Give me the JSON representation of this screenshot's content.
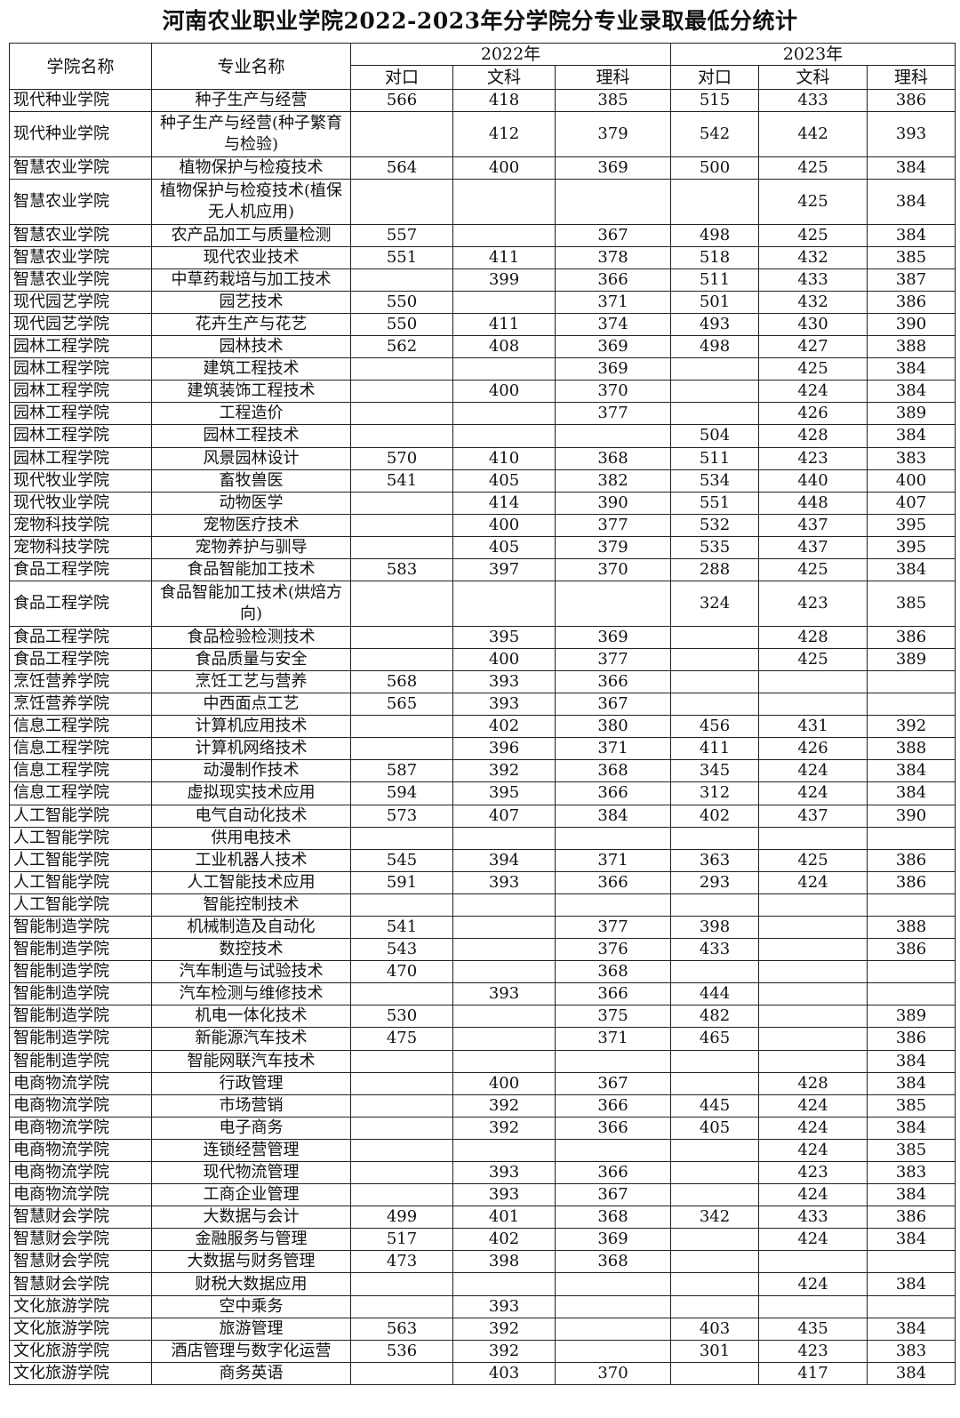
{
  "title": "河南农业职业学院2022-2023年分学院分专业录取最低分统计",
  "headers": {
    "college": "学院名称",
    "major": "专业名称",
    "years": [
      "2022年",
      "2023年"
    ],
    "subjects": [
      "对口",
      "文科",
      "理科",
      "对口",
      "文科",
      "理科"
    ]
  },
  "rows": [
    {
      "college": "现代种业学院",
      "major": "种子生产与经营",
      "v": [
        "566",
        "418",
        "385",
        "515",
        "433",
        "386"
      ]
    },
    {
      "college": "现代种业学院",
      "major": "种子生产与经营(种子繁育与检验)",
      "v": [
        "",
        "412",
        "379",
        "542",
        "442",
        "393"
      ]
    },
    {
      "college": "智慧农业学院",
      "major": "植物保护与检疫技术",
      "v": [
        "564",
        "400",
        "369",
        "500",
        "425",
        "384"
      ]
    },
    {
      "college": "智慧农业学院",
      "major": "植物保护与检疫技术(植保无人机应用)",
      "v": [
        "",
        "",
        "",
        "",
        "425",
        "384"
      ]
    },
    {
      "college": "智慧农业学院",
      "major": "农产品加工与质量检测",
      "v": [
        "557",
        "",
        "367",
        "498",
        "425",
        "384"
      ]
    },
    {
      "college": "智慧农业学院",
      "major": "现代农业技术",
      "v": [
        "551",
        "411",
        "378",
        "518",
        "432",
        "385"
      ]
    },
    {
      "college": "智慧农业学院",
      "major": "中草药栽培与加工技术",
      "v": [
        "",
        "399",
        "366",
        "511",
        "433",
        "387"
      ]
    },
    {
      "college": "现代园艺学院",
      "major": "园艺技术",
      "v": [
        "550",
        "",
        "371",
        "501",
        "432",
        "386"
      ]
    },
    {
      "college": "现代园艺学院",
      "major": "花卉生产与花艺",
      "v": [
        "550",
        "411",
        "374",
        "493",
        "430",
        "390"
      ]
    },
    {
      "college": "园林工程学院",
      "major": "园林技术",
      "v": [
        "562",
        "408",
        "369",
        "498",
        "427",
        "388"
      ]
    },
    {
      "college": "园林工程学院",
      "major": "建筑工程技术",
      "v": [
        "",
        "",
        "369",
        "",
        "425",
        "384"
      ]
    },
    {
      "college": "园林工程学院",
      "major": "建筑装饰工程技术",
      "v": [
        "",
        "400",
        "370",
        "",
        "424",
        "384"
      ]
    },
    {
      "college": "园林工程学院",
      "major": "工程造价",
      "v": [
        "",
        "",
        "377",
        "",
        "426",
        "389"
      ]
    },
    {
      "college": "园林工程学院",
      "major": "园林工程技术",
      "v": [
        "",
        "",
        "",
        "504",
        "428",
        "384"
      ]
    },
    {
      "college": "园林工程学院",
      "major": "风景园林设计",
      "v": [
        "570",
        "410",
        "368",
        "511",
        "423",
        "383"
      ]
    },
    {
      "college": "现代牧业学院",
      "major": "畜牧兽医",
      "v": [
        "541",
        "405",
        "382",
        "534",
        "440",
        "400"
      ]
    },
    {
      "college": "现代牧业学院",
      "major": "动物医学",
      "v": [
        "",
        "414",
        "390",
        "551",
        "448",
        "407"
      ]
    },
    {
      "college": "宠物科技学院",
      "major": "宠物医疗技术",
      "v": [
        "",
        "400",
        "377",
        "532",
        "437",
        "395"
      ]
    },
    {
      "college": "宠物科技学院",
      "major": "宠物养护与驯导",
      "v": [
        "",
        "405",
        "379",
        "535",
        "437",
        "395"
      ]
    },
    {
      "college": "食品工程学院",
      "major": "食品智能加工技术",
      "v": [
        "583",
        "397",
        "370",
        "288",
        "425",
        "384"
      ]
    },
    {
      "college": "食品工程学院",
      "major": "食品智能加工技术(烘焙方向)",
      "v": [
        "",
        "",
        "",
        "324",
        "423",
        "385"
      ]
    },
    {
      "college": "食品工程学院",
      "major": "食品检验检测技术",
      "v": [
        "",
        "395",
        "369",
        "",
        "428",
        "386"
      ]
    },
    {
      "college": "食品工程学院",
      "major": "食品质量与安全",
      "v": [
        "",
        "400",
        "377",
        "",
        "425",
        "389"
      ]
    },
    {
      "college": "烹饪营养学院",
      "major": "烹饪工艺与营养",
      "v": [
        "568",
        "393",
        "366",
        "",
        "",
        ""
      ]
    },
    {
      "college": "烹饪营养学院",
      "major": "中西面点工艺",
      "v": [
        "565",
        "393",
        "367",
        "",
        "",
        ""
      ]
    },
    {
      "college": "信息工程学院",
      "major": "计算机应用技术",
      "v": [
        "",
        "402",
        "380",
        "456",
        "431",
        "392"
      ]
    },
    {
      "college": "信息工程学院",
      "major": "计算机网络技术",
      "v": [
        "",
        "396",
        "371",
        "411",
        "426",
        "388"
      ]
    },
    {
      "college": "信息工程学院",
      "major": "动漫制作技术",
      "v": [
        "587",
        "392",
        "368",
        "345",
        "424",
        "384"
      ]
    },
    {
      "college": "信息工程学院",
      "major": "虚拟现实技术应用",
      "v": [
        "594",
        "395",
        "366",
        "312",
        "424",
        "384"
      ]
    },
    {
      "college": "人工智能学院",
      "major": "电气自动化技术",
      "v": [
        "573",
        "407",
        "384",
        "402",
        "437",
        "390"
      ]
    },
    {
      "college": "人工智能学院",
      "major": "供用电技术",
      "v": [
        "",
        "",
        "",
        "",
        "",
        ""
      ]
    },
    {
      "college": "人工智能学院",
      "major": "工业机器人技术",
      "v": [
        "545",
        "394",
        "371",
        "363",
        "425",
        "386"
      ]
    },
    {
      "college": "人工智能学院",
      "major": "人工智能技术应用",
      "v": [
        "591",
        "393",
        "366",
        "293",
        "424",
        "386"
      ]
    },
    {
      "college": "人工智能学院",
      "major": "智能控制技术",
      "v": [
        "",
        "",
        "",
        "",
        "",
        ""
      ]
    },
    {
      "college": "智能制造学院",
      "major": "机械制造及自动化",
      "v": [
        "541",
        "",
        "377",
        "398",
        "",
        "388"
      ]
    },
    {
      "college": "智能制造学院",
      "major": "数控技术",
      "v": [
        "543",
        "",
        "376",
        "433",
        "",
        "386"
      ]
    },
    {
      "college": "智能制造学院",
      "major": "汽车制造与试验技术",
      "v": [
        "470",
        "",
        "368",
        "",
        "",
        ""
      ]
    },
    {
      "college": "智能制造学院",
      "major": "汽车检测与维修技术",
      "v": [
        "",
        "393",
        "366",
        "444",
        "",
        ""
      ]
    },
    {
      "college": "智能制造学院",
      "major": "机电一体化技术",
      "v": [
        "530",
        "",
        "375",
        "482",
        "",
        "389"
      ]
    },
    {
      "college": "智能制造学院",
      "major": "新能源汽车技术",
      "v": [
        "475",
        "",
        "371",
        "465",
        "",
        "386"
      ]
    },
    {
      "college": "智能制造学院",
      "major": "智能网联汽车技术",
      "v": [
        "",
        "",
        "",
        "",
        "",
        "384"
      ]
    },
    {
      "college": "电商物流学院",
      "major": "行政管理",
      "v": [
        "",
        "400",
        "367",
        "",
        "428",
        "384"
      ]
    },
    {
      "college": "电商物流学院",
      "major": "市场营销",
      "v": [
        "",
        "392",
        "366",
        "445",
        "424",
        "385"
      ]
    },
    {
      "college": "电商物流学院",
      "major": "电子商务",
      "v": [
        "",
        "392",
        "366",
        "405",
        "424",
        "384"
      ]
    },
    {
      "college": "电商物流学院",
      "major": "连锁经营管理",
      "v": [
        "",
        "",
        "",
        "",
        "424",
        "385"
      ]
    },
    {
      "college": "电商物流学院",
      "major": "现代物流管理",
      "v": [
        "",
        "393",
        "366",
        "",
        "423",
        "383"
      ]
    },
    {
      "college": "电商物流学院",
      "major": "工商企业管理",
      "v": [
        "",
        "393",
        "367",
        "",
        "424",
        "384"
      ]
    },
    {
      "college": "智慧财会学院",
      "major": "大数据与会计",
      "v": [
        "499",
        "401",
        "368",
        "342",
        "433",
        "386"
      ]
    },
    {
      "college": "智慧财会学院",
      "major": "金融服务与管理",
      "v": [
        "517",
        "402",
        "369",
        "",
        "424",
        "384"
      ]
    },
    {
      "college": "智慧财会学院",
      "major": "大数据与财务管理",
      "v": [
        "473",
        "398",
        "368",
        "",
        "",
        ""
      ]
    },
    {
      "college": "智慧财会学院",
      "major": "财税大数据应用",
      "v": [
        "",
        "",
        "",
        "",
        "424",
        "384"
      ]
    },
    {
      "college": "文化旅游学院",
      "major": "空中乘务",
      "v": [
        "",
        "393",
        "",
        "",
        "",
        ""
      ]
    },
    {
      "college": "文化旅游学院",
      "major": "旅游管理",
      "v": [
        "563",
        "392",
        "",
        "403",
        "435",
        "384"
      ]
    },
    {
      "college": "文化旅游学院",
      "major": "酒店管理与数字化运营",
      "v": [
        "536",
        "392",
        "",
        "301",
        "423",
        "383"
      ]
    },
    {
      "college": "文化旅游学院",
      "major": "商务英语",
      "v": [
        "",
        "403",
        "370",
        "",
        "417",
        "384"
      ]
    }
  ]
}
